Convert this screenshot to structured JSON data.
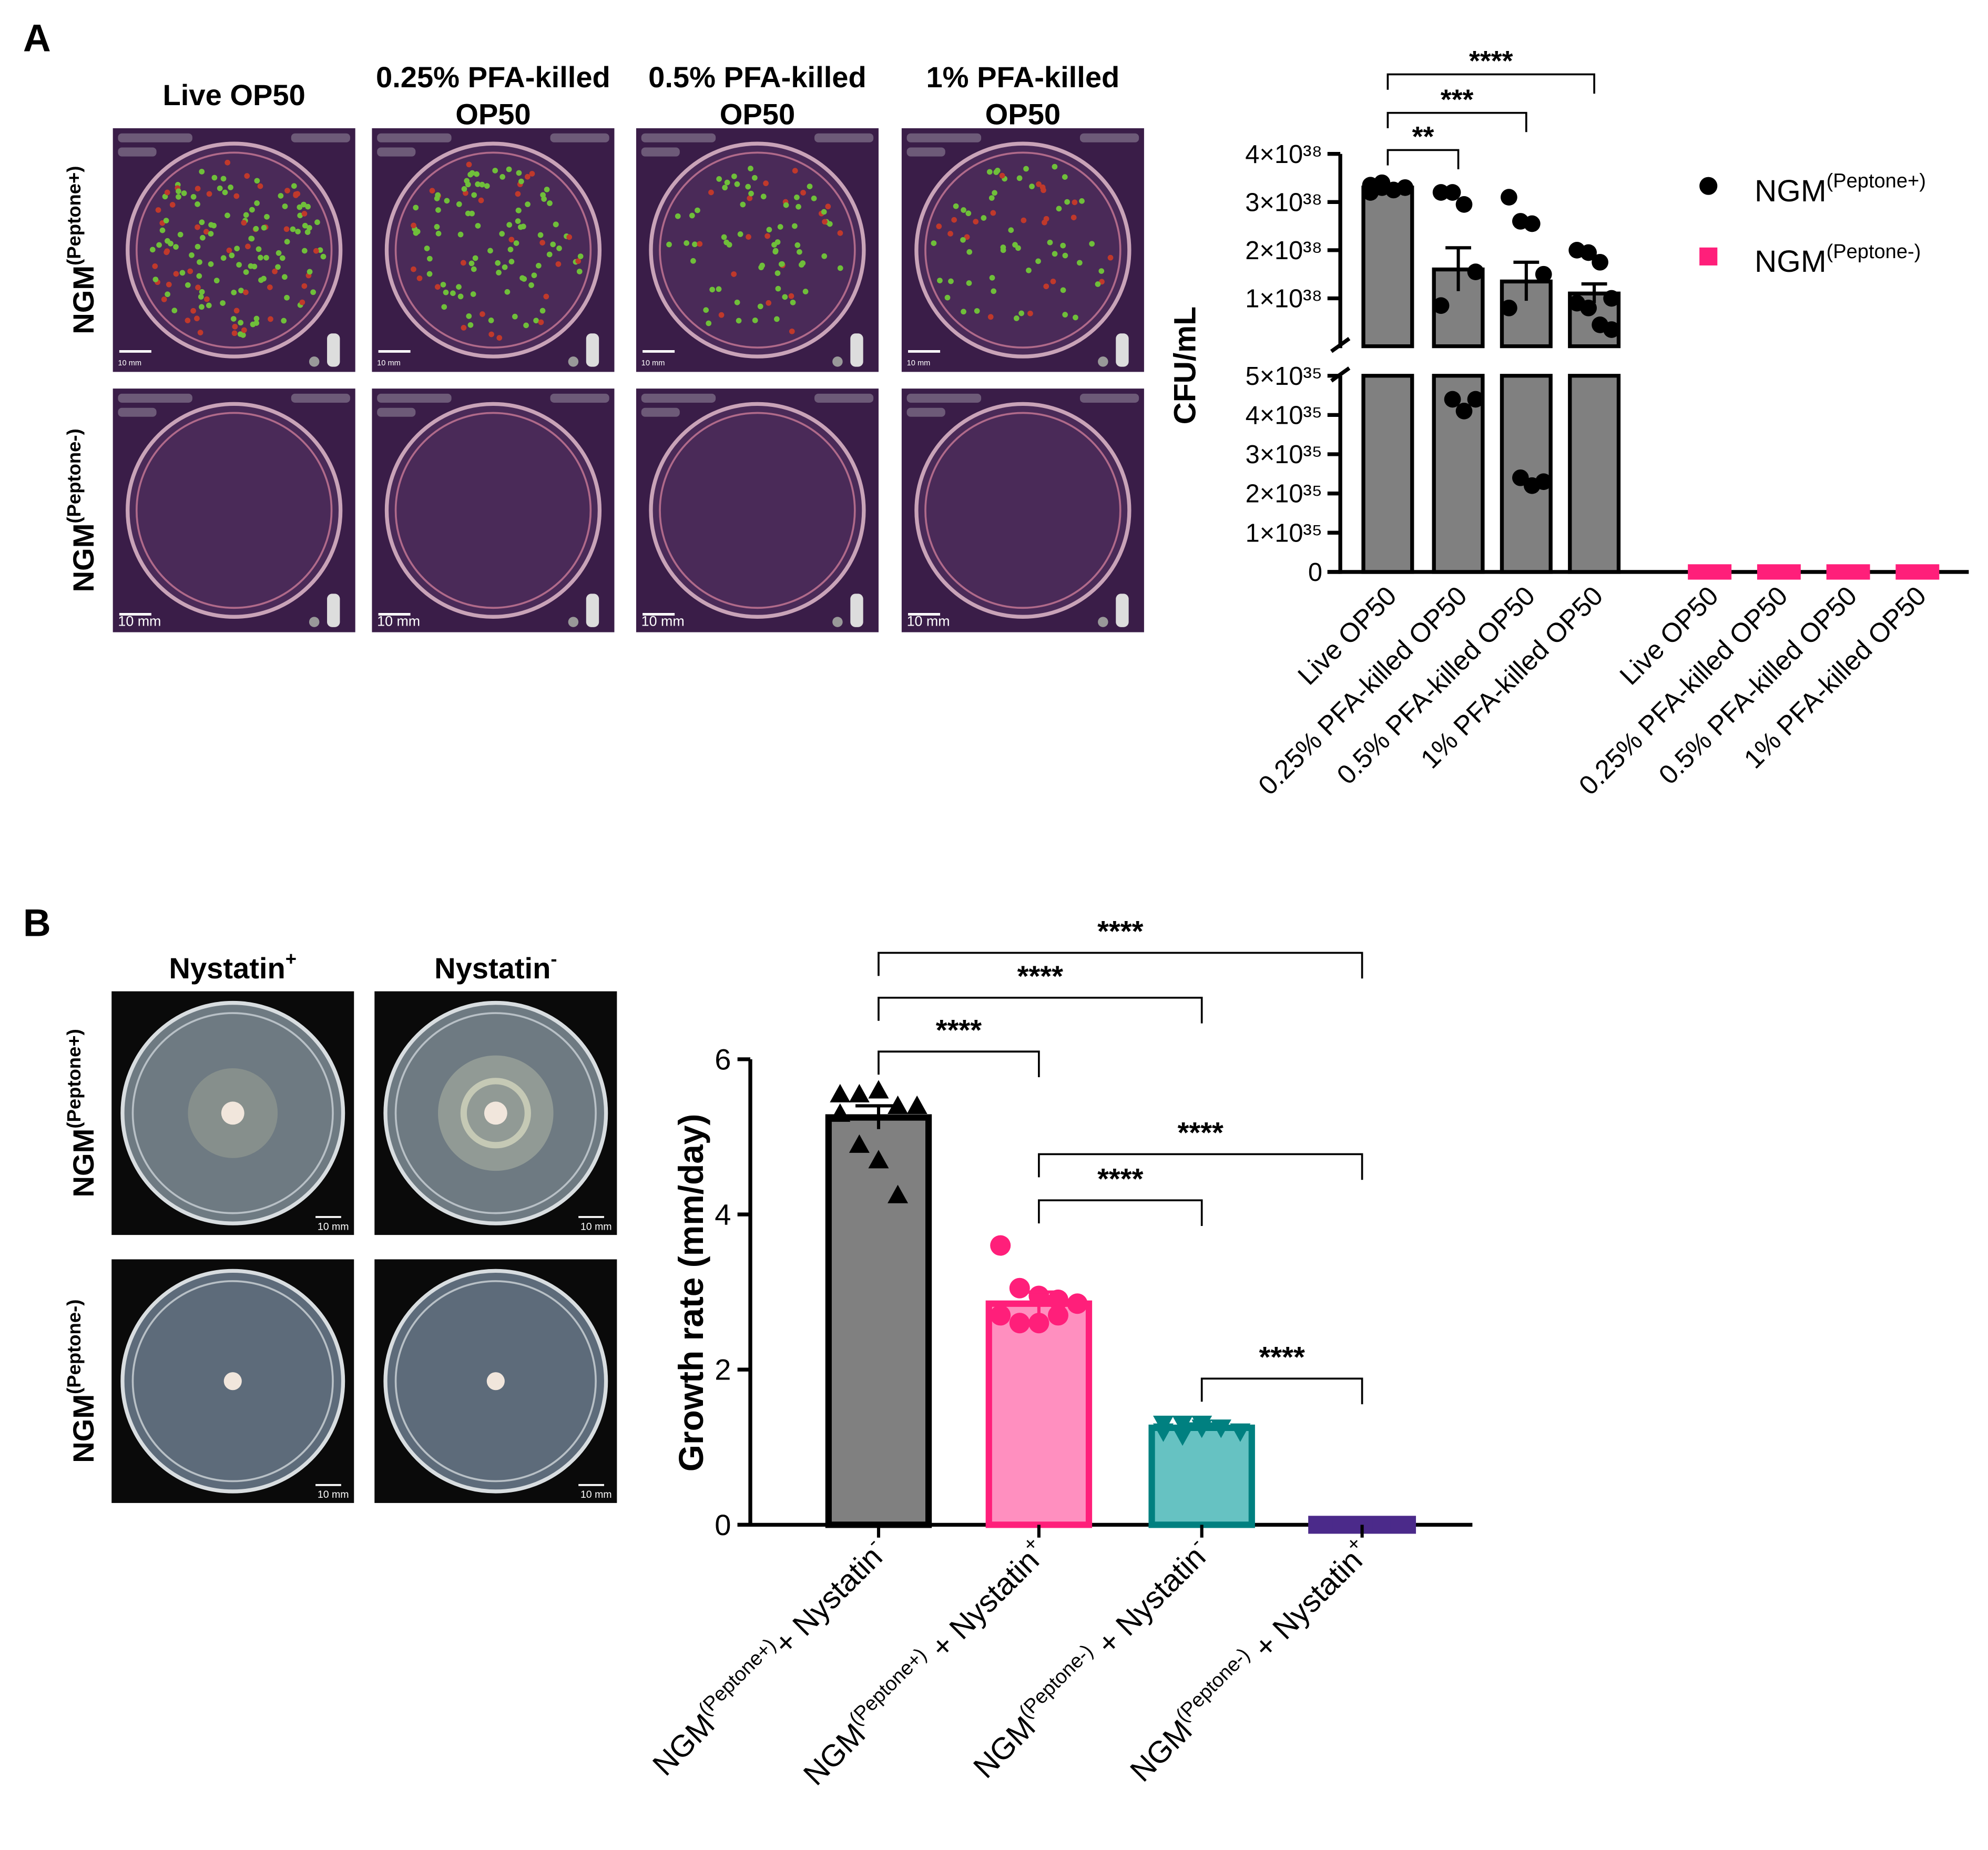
{
  "figure": {
    "panel_a": {
      "label": "A",
      "columns": [
        [
          "Live OP50"
        ],
        [
          "0.25% PFA-killed",
          "OP50"
        ],
        [
          "0.5% PFA-killed",
          "OP50"
        ],
        [
          "1% PFA-killed",
          "OP50"
        ]
      ],
      "rows": [
        {
          "base": "NGM",
          "sup": "(Peptone+)"
        },
        {
          "base": "NGM",
          "sup": "(Peptone-)"
        }
      ],
      "scale_bar": "10 mm"
    },
    "panel_b": {
      "label": "B",
      "columns": [
        {
          "base": "Nystatin",
          "sup": "+"
        },
        {
          "base": "Nystatin",
          "sup": "-"
        }
      ],
      "rows": [
        {
          "base": "NGM",
          "sup": "(Peptone+)"
        },
        {
          "base": "NGM",
          "sup": "(Peptone-)"
        }
      ],
      "scale_bar": "10 mm"
    }
  },
  "chart_data": [
    {
      "type": "broken-bar",
      "ylabel": "CFU/mL",
      "categories": [
        "Live OP50",
        "0.25% PFA-killed OP50",
        "0.5% PFA-killed OP50",
        "1% PFA-killed OP50"
      ],
      "y_segments": [
        {
          "ylim": [
            0,
            5e+35
          ],
          "yticks": [
            0,
            {
              "value": 1e+35,
              "label": "1×10³⁵"
            },
            {
              "value": 2e+35,
              "label": "2×10³⁵"
            },
            {
              "value": 3e+35,
              "label": "3×10³⁵"
            },
            {
              "value": 4e+35,
              "label": "4×10³⁵"
            },
            {
              "value": 5e+35,
              "label": "5×10³⁵"
            }
          ]
        },
        {
          "ylim": [
            5e+35,
            4e+38
          ],
          "yticks": [
            {
              "value": 1e+38,
              "label": "1×10³⁸"
            },
            {
              "value": 2e+38,
              "label": "2×10³⁸"
            },
            {
              "value": 3e+38,
              "label": "3×10³⁸"
            },
            {
              "value": 4e+38,
              "label": "4×10³⁸"
            }
          ]
        }
      ],
      "series": [
        {
          "name": "NGM",
          "name_sup": "(Peptone+)",
          "color": "#808080",
          "marker_color": "#000000",
          "values": [
            3.3e+38,
            1.6e+38,
            1.35e+38,
            1.1e+38
          ],
          "errors": [
            5e+36,
            4.5e+37,
            4e+37,
            2e+37
          ],
          "points": [
            [
              3.35e+38,
              3.3e+38,
              3.25e+38,
              3.3e+38,
              3.2e+38,
              3.4e+38
            ],
            [
              3.2e+38,
              3.2e+38,
              2.95e+38,
              1.55e+38,
              8.5e+37,
              4.4e+35,
              4.1e+35,
              4.4e+35
            ],
            [
              3.1e+38,
              2.6e+38,
              2.55e+38,
              1.5e+38,
              8e+37,
              2.4e+35,
              2.2e+35,
              2.3e+35
            ],
            [
              2e+38,
              1.95e+38,
              1.75e+38,
              1e+38,
              9e+37,
              8e+37,
              4.5e+37,
              3.5e+37
            ]
          ]
        },
        {
          "name": "NGM",
          "name_sup": "(Peptone-)",
          "color": "#ff1f7a",
          "values": [
            0,
            0,
            0,
            0
          ]
        }
      ],
      "legend": "right",
      "annotations": [
        {
          "text": "**",
          "from": 0,
          "to": 1
        },
        {
          "text": "***",
          "from": 0,
          "to": 2
        },
        {
          "text": "****",
          "from": 0,
          "to": 3
        }
      ]
    },
    {
      "type": "bar",
      "ylabel": "Growth rate (mm/day)",
      "categories": [
        {
          "base": "NGM",
          "sup": "(Peptone+)",
          "mid": "+ Nystatin",
          "sup2": "-"
        },
        {
          "base": "NGM",
          "sup": "(Peptone+)",
          "mid": " + Nystatin",
          "sup2": "+"
        },
        {
          "base": "NGM",
          "sup": "(Peptone-)",
          "mid": " + Nystatin",
          "sup2": "-"
        },
        {
          "base": "NGM",
          "sup": "(Peptone-)",
          "mid": " + Nystatin",
          "sup2": "+"
        }
      ],
      "ylim": [
        0,
        6
      ],
      "yticks": [
        0,
        2,
        4,
        6
      ],
      "values": [
        5.25,
        2.85,
        1.25,
        0
      ],
      "errors": [
        0.15,
        0.15,
        0.05,
        0
      ],
      "colors": [
        "#808080",
        "#ff8fbf",
        "#66c2c2",
        "#4b2a8a"
      ],
      "edge_colors": [
        "#000000",
        "#ff1f7a",
        "#008080",
        "#4b2a8a"
      ],
      "markers": [
        "triangle",
        "circle",
        "triangle-down",
        "square"
      ],
      "points": [
        [
          5.55,
          5.55,
          5.6,
          5.4,
          5.4,
          5.3,
          4.9,
          4.7,
          4.25
        ],
        [
          3.6,
          3.05,
          2.95,
          2.9,
          2.85,
          2.7,
          2.6,
          2.6,
          2.7
        ],
        [
          1.3,
          1.3,
          1.25,
          1.25,
          1.2,
          1.2,
          1.15,
          1.3,
          1.25
        ],
        [
          0,
          0,
          0,
          0,
          0,
          0,
          0,
          0
        ]
      ],
      "annotations": [
        {
          "text": "****",
          "from": 0,
          "to": 1
        },
        {
          "text": "****",
          "from": 0,
          "to": 2
        },
        {
          "text": "****",
          "from": 0,
          "to": 3
        },
        {
          "text": "****",
          "from": 1,
          "to": 2
        },
        {
          "text": "****",
          "from": 1,
          "to": 3
        },
        {
          "text": "****",
          "from": 2,
          "to": 3
        }
      ]
    }
  ]
}
